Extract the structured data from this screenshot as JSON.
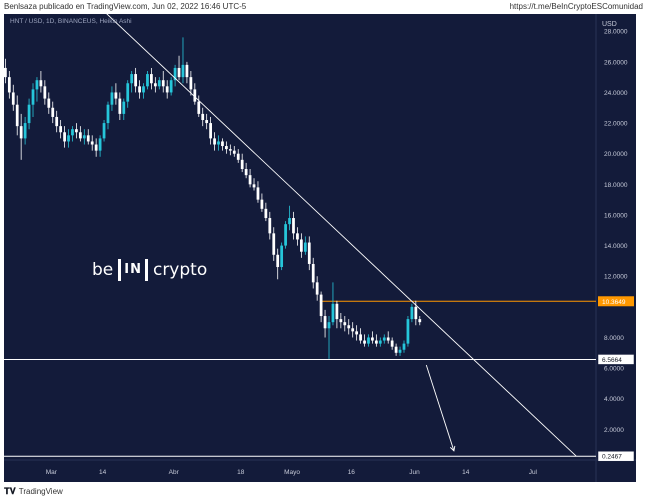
{
  "header": {
    "publisher": "Benlsaza publicado en TradingView.com, Jun 02, 2022 16:46 UTC-5",
    "link": "https://t.me/BeInCryptoESComunidad"
  },
  "footer": {
    "brand": "TradingView",
    "icon": "tradingview-logo-icon"
  },
  "symbol_info": "HNT / USD, 1D, BINANCEUS, Heikin Ashi",
  "logo": {
    "pre": "be",
    "box": "IN",
    "post": "crypto"
  },
  "colors": {
    "background": "#131b3a",
    "bull": "#26c6da",
    "bear": "#ffffff",
    "resistance": "#ff9800",
    "support": "#ffffff",
    "trendline": "#ffffff"
  },
  "chart_data": {
    "type": "candlestick",
    "style": "Heikin Ashi",
    "ylabel": "USD",
    "ylim": [
      0,
      28.6
    ],
    "y_ticks": [
      0,
      2,
      4,
      6,
      8,
      10,
      12,
      14,
      16,
      18,
      20,
      22,
      24,
      26,
      28
    ],
    "y_tick_labels": [
      "",
      "2.0000",
      "4.0000",
      "6.0000",
      "8.0000",
      "",
      "12.0000",
      "14.0000",
      "16.0000",
      "18.0000",
      "20.0000",
      "22.0000",
      "24.0000",
      "26.0000",
      "28.0000"
    ],
    "x_range": [
      "2022-02-17",
      "2022-07-17"
    ],
    "x_ticks": [
      {
        "date": "2022-03-01",
        "label": "Mar"
      },
      {
        "date": "2022-03-14",
        "label": "14"
      },
      {
        "date": "2022-04-01",
        "label": "Abr"
      },
      {
        "date": "2022-04-18",
        "label": "18"
      },
      {
        "date": "2022-05-01",
        "label": "Mayo"
      },
      {
        "date": "2022-05-16",
        "label": "16"
      },
      {
        "date": "2022-06-01",
        "label": "Jun"
      },
      {
        "date": "2022-06-14",
        "label": "14"
      },
      {
        "date": "2022-07-01",
        "label": "Jul"
      }
    ],
    "candles": [
      [
        "2022-02-17",
        25.6,
        26.2,
        24.6,
        25.0
      ],
      [
        "2022-02-18",
        25.0,
        25.4,
        23.6,
        24.0
      ],
      [
        "2022-02-19",
        24.0,
        24.5,
        22.8,
        23.2
      ],
      [
        "2022-02-20",
        23.2,
        23.8,
        21.2,
        21.8
      ],
      [
        "2022-02-21",
        21.8,
        22.6,
        19.6,
        21.0
      ],
      [
        "2022-02-22",
        21.0,
        22.4,
        20.6,
        22.0
      ],
      [
        "2022-02-23",
        22.0,
        23.6,
        21.6,
        23.2
      ],
      [
        "2022-02-24",
        23.2,
        24.6,
        22.4,
        24.2
      ],
      [
        "2022-02-25",
        24.2,
        25.0,
        23.4,
        24.8
      ],
      [
        "2022-02-26",
        24.8,
        25.4,
        24.0,
        24.4
      ],
      [
        "2022-02-27",
        24.4,
        24.8,
        23.2,
        23.6
      ],
      [
        "2022-02-28",
        23.6,
        24.0,
        22.6,
        23.0
      ],
      [
        "2022-03-01",
        23.0,
        23.4,
        22.0,
        22.4
      ],
      [
        "2022-03-02",
        22.4,
        22.8,
        21.4,
        21.8
      ],
      [
        "2022-03-03",
        21.8,
        22.2,
        21.0,
        21.4
      ],
      [
        "2022-03-04",
        21.4,
        21.8,
        20.4,
        20.8
      ],
      [
        "2022-03-05",
        20.8,
        21.6,
        20.4,
        21.2
      ],
      [
        "2022-03-06",
        21.2,
        21.8,
        20.8,
        21.6
      ],
      [
        "2022-03-07",
        21.6,
        22.0,
        21.0,
        21.4
      ],
      [
        "2022-03-08",
        21.4,
        21.8,
        20.8,
        21.0
      ],
      [
        "2022-03-09",
        21.0,
        21.6,
        20.6,
        21.2
      ],
      [
        "2022-03-10",
        21.2,
        21.6,
        20.6,
        20.8
      ],
      [
        "2022-03-11",
        20.8,
        21.2,
        20.2,
        20.6
      ],
      [
        "2022-03-12",
        20.6,
        21.0,
        19.8,
        20.2
      ],
      [
        "2022-03-13",
        20.2,
        21.2,
        19.8,
        21.0
      ],
      [
        "2022-03-14",
        21.0,
        22.2,
        20.8,
        22.0
      ],
      [
        "2022-03-15",
        22.0,
        23.4,
        21.6,
        23.2
      ],
      [
        "2022-03-16",
        23.2,
        24.4,
        22.8,
        24.0
      ],
      [
        "2022-03-17",
        24.0,
        24.6,
        23.2,
        23.6
      ],
      [
        "2022-03-18",
        23.6,
        24.0,
        22.2,
        22.6
      ],
      [
        "2022-03-19",
        22.6,
        23.6,
        22.2,
        23.4
      ],
      [
        "2022-03-20",
        23.4,
        24.8,
        23.0,
        24.6
      ],
      [
        "2022-03-21",
        24.6,
        25.4,
        24.0,
        25.2
      ],
      [
        "2022-03-22",
        25.2,
        25.6,
        24.0,
        24.4
      ],
      [
        "2022-03-23",
        24.4,
        24.8,
        23.6,
        24.0
      ],
      [
        "2022-03-24",
        24.0,
        24.6,
        23.6,
        24.4
      ],
      [
        "2022-03-25",
        24.4,
        25.4,
        24.2,
        25.2
      ],
      [
        "2022-03-26",
        25.2,
        25.6,
        24.2,
        24.6
      ],
      [
        "2022-03-27",
        24.6,
        25.0,
        24.0,
        24.4
      ],
      [
        "2022-03-28",
        24.4,
        25.0,
        24.2,
        24.8
      ],
      [
        "2022-03-29",
        24.8,
        25.4,
        24.0,
        24.4
      ],
      [
        "2022-03-30",
        24.4,
        24.8,
        23.6,
        24.0
      ],
      [
        "2022-03-31",
        24.0,
        25.0,
        23.8,
        24.8
      ],
      [
        "2022-04-01",
        24.8,
        25.8,
        24.4,
        25.6
      ],
      [
        "2022-04-02",
        25.6,
        26.4,
        24.8,
        25.0
      ],
      [
        "2022-04-03",
        25.0,
        27.6,
        24.6,
        25.8
      ],
      [
        "2022-04-04",
        25.8,
        26.0,
        24.6,
        25.0
      ],
      [
        "2022-04-05",
        25.0,
        25.4,
        23.8,
        24.2
      ],
      [
        "2022-04-06",
        24.2,
        24.6,
        23.2,
        23.4
      ],
      [
        "2022-04-07",
        23.4,
        23.8,
        22.4,
        22.6
      ],
      [
        "2022-04-08",
        22.6,
        23.0,
        21.8,
        22.2
      ],
      [
        "2022-04-09",
        22.2,
        22.6,
        21.6,
        22.0
      ],
      [
        "2022-04-10",
        22.0,
        22.4,
        20.6,
        21.0
      ],
      [
        "2022-04-11",
        21.0,
        21.4,
        20.2,
        20.6
      ],
      [
        "2022-04-12",
        20.6,
        21.2,
        20.2,
        20.8
      ],
      [
        "2022-04-13",
        20.8,
        21.0,
        20.2,
        20.5
      ],
      [
        "2022-04-14",
        20.5,
        20.8,
        20.0,
        20.3
      ],
      [
        "2022-04-15",
        20.3,
        20.6,
        19.9,
        20.2
      ],
      [
        "2022-04-16",
        20.2,
        20.5,
        19.8,
        20.0
      ],
      [
        "2022-04-17",
        20.0,
        20.3,
        19.4,
        19.6
      ],
      [
        "2022-04-18",
        19.6,
        20.0,
        18.8,
        19.0
      ],
      [
        "2022-04-19",
        19.0,
        19.4,
        18.4,
        18.6
      ],
      [
        "2022-04-20",
        18.6,
        19.0,
        17.8,
        18.0
      ],
      [
        "2022-04-21",
        18.0,
        18.4,
        17.6,
        17.8
      ],
      [
        "2022-04-22",
        17.8,
        18.2,
        16.8,
        17.0
      ],
      [
        "2022-04-23",
        17.0,
        17.4,
        16.2,
        16.4
      ],
      [
        "2022-04-24",
        16.4,
        16.8,
        15.6,
        15.8
      ],
      [
        "2022-04-25",
        15.8,
        16.2,
        14.4,
        14.8
      ],
      [
        "2022-04-26",
        14.8,
        15.2,
        13.0,
        13.4
      ],
      [
        "2022-04-27",
        13.4,
        13.8,
        11.8,
        12.6
      ],
      [
        "2022-04-28",
        12.6,
        14.2,
        12.4,
        14.0
      ],
      [
        "2022-04-29",
        14.0,
        15.6,
        13.8,
        15.4
      ],
      [
        "2022-04-30",
        15.4,
        16.6,
        15.0,
        15.8
      ],
      [
        "2022-05-01",
        15.8,
        16.2,
        14.4,
        14.8
      ],
      [
        "2022-05-02",
        14.8,
        15.2,
        14.0,
        14.4
      ],
      [
        "2022-05-03",
        14.4,
        14.8,
        13.2,
        13.6
      ],
      [
        "2022-05-04",
        13.6,
        14.6,
        13.4,
        14.2
      ],
      [
        "2022-05-05",
        14.2,
        14.6,
        12.4,
        12.8
      ],
      [
        "2022-05-06",
        12.8,
        13.2,
        11.2,
        11.6
      ],
      [
        "2022-05-07",
        11.6,
        12.0,
        10.4,
        10.8
      ],
      [
        "2022-05-08",
        10.8,
        11.0,
        9.0,
        9.4
      ],
      [
        "2022-05-09",
        9.4,
        9.8,
        8.0,
        8.6
      ],
      [
        "2022-05-10",
        8.6,
        9.4,
        6.6,
        9.0
      ],
      [
        "2022-05-11",
        9.0,
        11.6,
        8.8,
        10.2
      ],
      [
        "2022-05-12",
        10.2,
        10.4,
        8.6,
        9.2
      ],
      [
        "2022-05-13",
        9.2,
        9.6,
        8.6,
        9.0
      ],
      [
        "2022-05-14",
        9.0,
        9.4,
        8.4,
        8.8
      ],
      [
        "2022-05-15",
        8.8,
        9.2,
        8.2,
        8.6
      ],
      [
        "2022-05-16",
        8.6,
        9.0,
        8.0,
        8.4
      ],
      [
        "2022-05-17",
        8.4,
        8.8,
        7.8,
        8.2
      ],
      [
        "2022-05-18",
        8.2,
        8.6,
        7.6,
        7.8
      ],
      [
        "2022-05-19",
        7.8,
        8.2,
        7.4,
        7.6
      ],
      [
        "2022-05-20",
        7.6,
        8.2,
        7.4,
        8.0
      ],
      [
        "2022-05-21",
        8.0,
        8.4,
        7.6,
        7.8
      ],
      [
        "2022-05-22",
        7.8,
        8.2,
        7.4,
        7.6
      ],
      [
        "2022-05-23",
        7.6,
        8.0,
        7.4,
        7.8
      ],
      [
        "2022-05-24",
        7.8,
        8.2,
        7.6,
        8.0
      ],
      [
        "2022-05-25",
        8.0,
        8.4,
        7.6,
        7.8
      ],
      [
        "2022-05-26",
        7.8,
        8.0,
        7.2,
        7.4
      ],
      [
        "2022-05-27",
        7.4,
        7.6,
        6.8,
        7.0
      ],
      [
        "2022-05-28",
        7.0,
        7.4,
        6.8,
        7.2
      ],
      [
        "2022-05-29",
        7.2,
        7.8,
        7.0,
        7.6
      ],
      [
        "2022-05-30",
        7.6,
        9.4,
        7.4,
        9.2
      ],
      [
        "2022-05-31",
        9.2,
        10.2,
        9.0,
        10.0
      ],
      [
        "2022-06-01",
        10.0,
        10.4,
        8.8,
        9.2
      ],
      [
        "2022-06-02",
        9.2,
        9.4,
        8.8,
        9.0
      ]
    ],
    "horizontal_lines": [
      {
        "level": 10.3649,
        "label": "10.3649",
        "color": "#ff9800",
        "from": "2022-05-08"
      },
      {
        "level": 6.5664,
        "label": "6.5664",
        "color": "#ffffff",
        "from": "2022-02-17"
      },
      {
        "level": 0.2467,
        "label": "0.2467",
        "color": "#ffffff",
        "from": "2022-02-17"
      }
    ],
    "trendline": {
      "start": [
        "2022-03-09",
        30.6
      ],
      "end": [
        "2022-07-12",
        0.2467
      ]
    },
    "projection_arrow": {
      "start": [
        "2022-06-04",
        6.2
      ],
      "end": [
        "2022-06-11",
        0.6
      ]
    }
  }
}
